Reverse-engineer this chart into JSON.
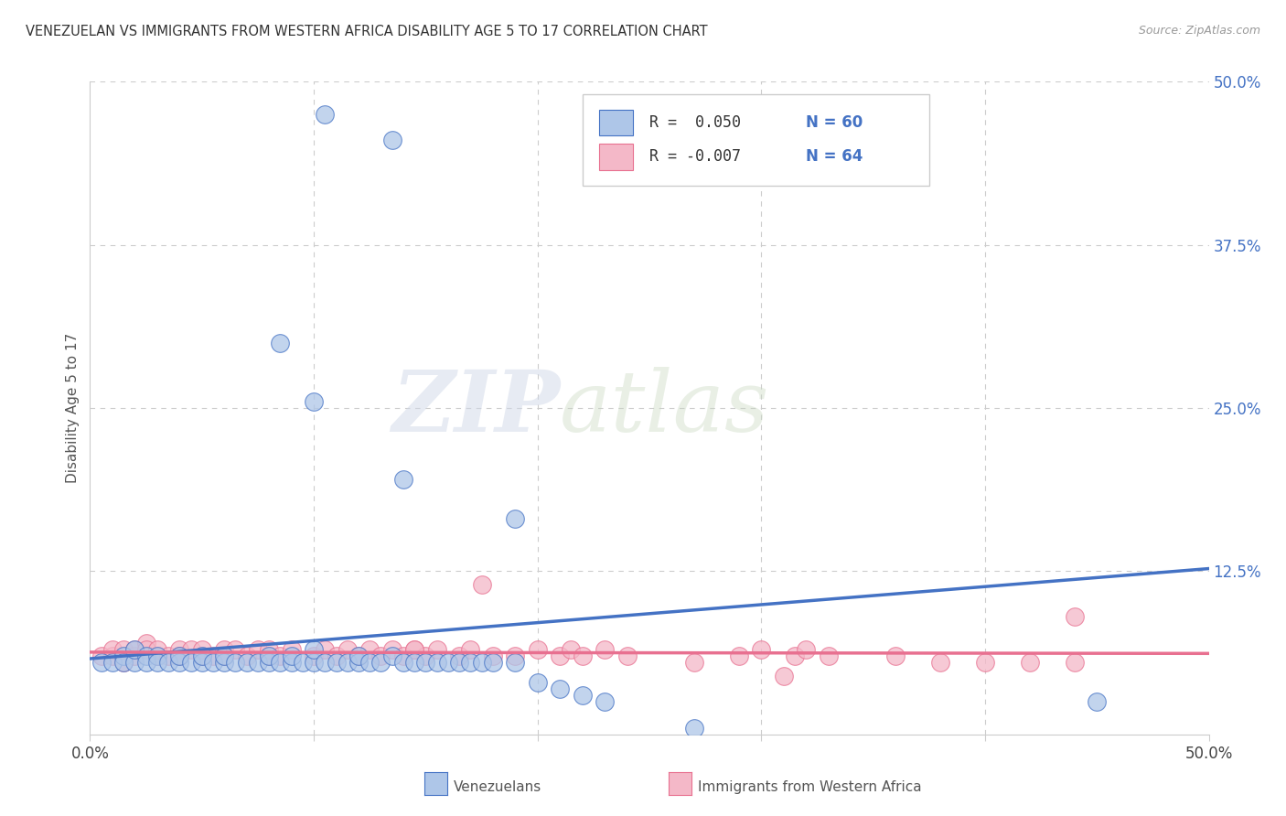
{
  "title": "VENEZUELAN VS IMMIGRANTS FROM WESTERN AFRICA DISABILITY AGE 5 TO 17 CORRELATION CHART",
  "source": "Source: ZipAtlas.com",
  "ylabel": "Disability Age 5 to 17",
  "xlim": [
    0.0,
    0.5
  ],
  "ylim": [
    0.0,
    0.5
  ],
  "ytick_labels": [
    "",
    "12.5%",
    "25.0%",
    "37.5%",
    "50.0%"
  ],
  "xtick_labels": [
    "0.0%",
    "",
    "",
    "",
    "",
    "50.0%"
  ],
  "watermark_zip": "ZIP",
  "watermark_atlas": "atlas",
  "legend_r1": "R =  0.050",
  "legend_n1": "N = 60",
  "legend_r2": "R = -0.007",
  "legend_n2": "N = 64",
  "venezuelan_color": "#aec6e8",
  "western_africa_color": "#f4b8c8",
  "line1_color": "#4472c4",
  "line2_color": "#e87090",
  "tick_color": "#4472c4",
  "grid_color": "#cccccc",
  "background_color": "#ffffff",
  "venezuelan_x": [
    0.105,
    0.135,
    0.085,
    0.1,
    0.14,
    0.19,
    0.005,
    0.01,
    0.015,
    0.015,
    0.02,
    0.02,
    0.025,
    0.025,
    0.03,
    0.03,
    0.035,
    0.04,
    0.04,
    0.045,
    0.05,
    0.05,
    0.055,
    0.06,
    0.06,
    0.065,
    0.07,
    0.075,
    0.08,
    0.08,
    0.085,
    0.09,
    0.09,
    0.095,
    0.1,
    0.1,
    0.105,
    0.11,
    0.115,
    0.12,
    0.12,
    0.125,
    0.13,
    0.135,
    0.14,
    0.145,
    0.15,
    0.155,
    0.16,
    0.165,
    0.17,
    0.175,
    0.18,
    0.19,
    0.2,
    0.21,
    0.22,
    0.23,
    0.45,
    0.27
  ],
  "venezuelan_y": [
    0.475,
    0.455,
    0.3,
    0.255,
    0.195,
    0.165,
    0.055,
    0.055,
    0.06,
    0.055,
    0.055,
    0.065,
    0.06,
    0.055,
    0.06,
    0.055,
    0.055,
    0.055,
    0.06,
    0.055,
    0.055,
    0.06,
    0.055,
    0.055,
    0.06,
    0.055,
    0.055,
    0.055,
    0.055,
    0.06,
    0.055,
    0.055,
    0.06,
    0.055,
    0.055,
    0.065,
    0.055,
    0.055,
    0.055,
    0.055,
    0.06,
    0.055,
    0.055,
    0.06,
    0.055,
    0.055,
    0.055,
    0.055,
    0.055,
    0.055,
    0.055,
    0.055,
    0.055,
    0.055,
    0.04,
    0.035,
    0.03,
    0.025,
    0.025,
    0.005
  ],
  "western_africa_x": [
    0.005,
    0.01,
    0.01,
    0.015,
    0.015,
    0.02,
    0.02,
    0.025,
    0.025,
    0.03,
    0.03,
    0.035,
    0.04,
    0.04,
    0.045,
    0.05,
    0.05,
    0.055,
    0.06,
    0.06,
    0.065,
    0.07,
    0.075,
    0.08,
    0.08,
    0.085,
    0.09,
    0.1,
    0.105,
    0.11,
    0.115,
    0.12,
    0.125,
    0.13,
    0.135,
    0.14,
    0.145,
    0.15,
    0.155,
    0.165,
    0.17,
    0.175,
    0.19,
    0.2,
    0.21,
    0.215,
    0.22,
    0.23,
    0.24,
    0.27,
    0.29,
    0.3,
    0.31,
    0.315,
    0.32,
    0.33,
    0.145,
    0.18,
    0.44,
    0.36,
    0.38,
    0.4,
    0.42,
    0.44
  ],
  "western_africa_y": [
    0.06,
    0.06,
    0.065,
    0.055,
    0.065,
    0.06,
    0.065,
    0.07,
    0.065,
    0.06,
    0.065,
    0.06,
    0.065,
    0.06,
    0.065,
    0.06,
    0.065,
    0.06,
    0.065,
    0.06,
    0.065,
    0.06,
    0.065,
    0.06,
    0.065,
    0.06,
    0.065,
    0.06,
    0.065,
    0.06,
    0.065,
    0.06,
    0.065,
    0.06,
    0.065,
    0.06,
    0.065,
    0.06,
    0.065,
    0.06,
    0.065,
    0.115,
    0.06,
    0.065,
    0.06,
    0.065,
    0.06,
    0.065,
    0.06,
    0.055,
    0.06,
    0.065,
    0.045,
    0.06,
    0.065,
    0.06,
    0.065,
    0.06,
    0.09,
    0.06,
    0.055,
    0.055,
    0.055,
    0.055
  ],
  "ven_line_x0": 0.0,
  "ven_line_x1": 0.5,
  "ven_line_y0": 0.058,
  "ven_line_y1": 0.127,
  "waf_line_x0": 0.0,
  "waf_line_x1": 0.5,
  "waf_line_y0": 0.063,
  "waf_line_y1": 0.062
}
